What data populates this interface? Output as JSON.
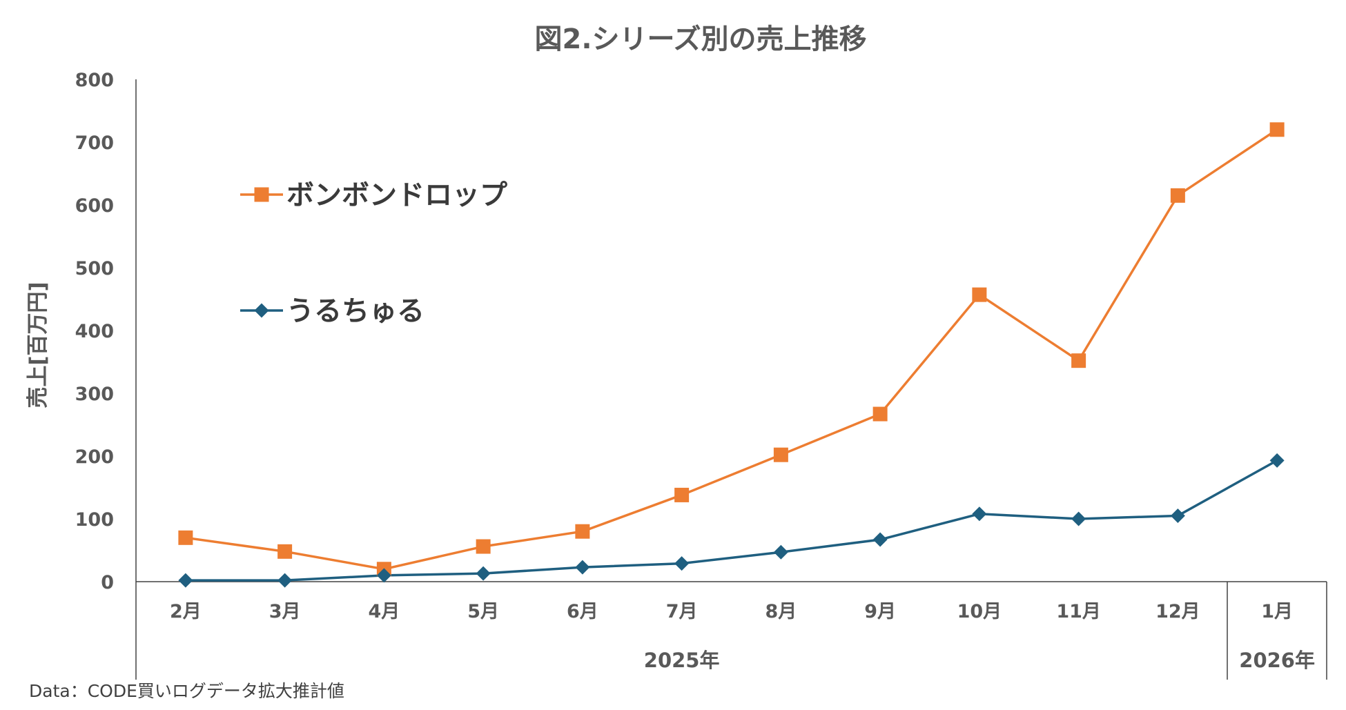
{
  "chart_data": {
    "type": "line",
    "title": "図2.シリーズ別の売上推移",
    "ylabel": "売上[百万円]",
    "xlabel": "",
    "ylim": [
      0,
      800
    ],
    "yticks": [
      0,
      100,
      200,
      300,
      400,
      500,
      600,
      700,
      800
    ],
    "categories": [
      "2月",
      "3月",
      "4月",
      "5月",
      "6月",
      "7月",
      "8月",
      "9月",
      "10月",
      "11月",
      "12月",
      "1月"
    ],
    "groups": [
      {
        "label": "2025年",
        "start": 0,
        "end": 10
      },
      {
        "label": "2026年",
        "start": 11,
        "end": 11
      }
    ],
    "series": [
      {
        "name": "ボンボンドロップ",
        "color": "#ED7D31",
        "marker": "square",
        "values": [
          70,
          48,
          20,
          56,
          80,
          138,
          202,
          267,
          457,
          352,
          615,
          720
        ]
      },
      {
        "name": "うるちゅる",
        "color": "#1F5F80",
        "marker": "diamond",
        "values": [
          2,
          2,
          10,
          13,
          23,
          29,
          47,
          67,
          108,
          100,
          105,
          193
        ]
      }
    ],
    "legend_position": "upper-left inside",
    "grid": false,
    "source": "Data：CODE買いログデータ拡大推計値"
  }
}
